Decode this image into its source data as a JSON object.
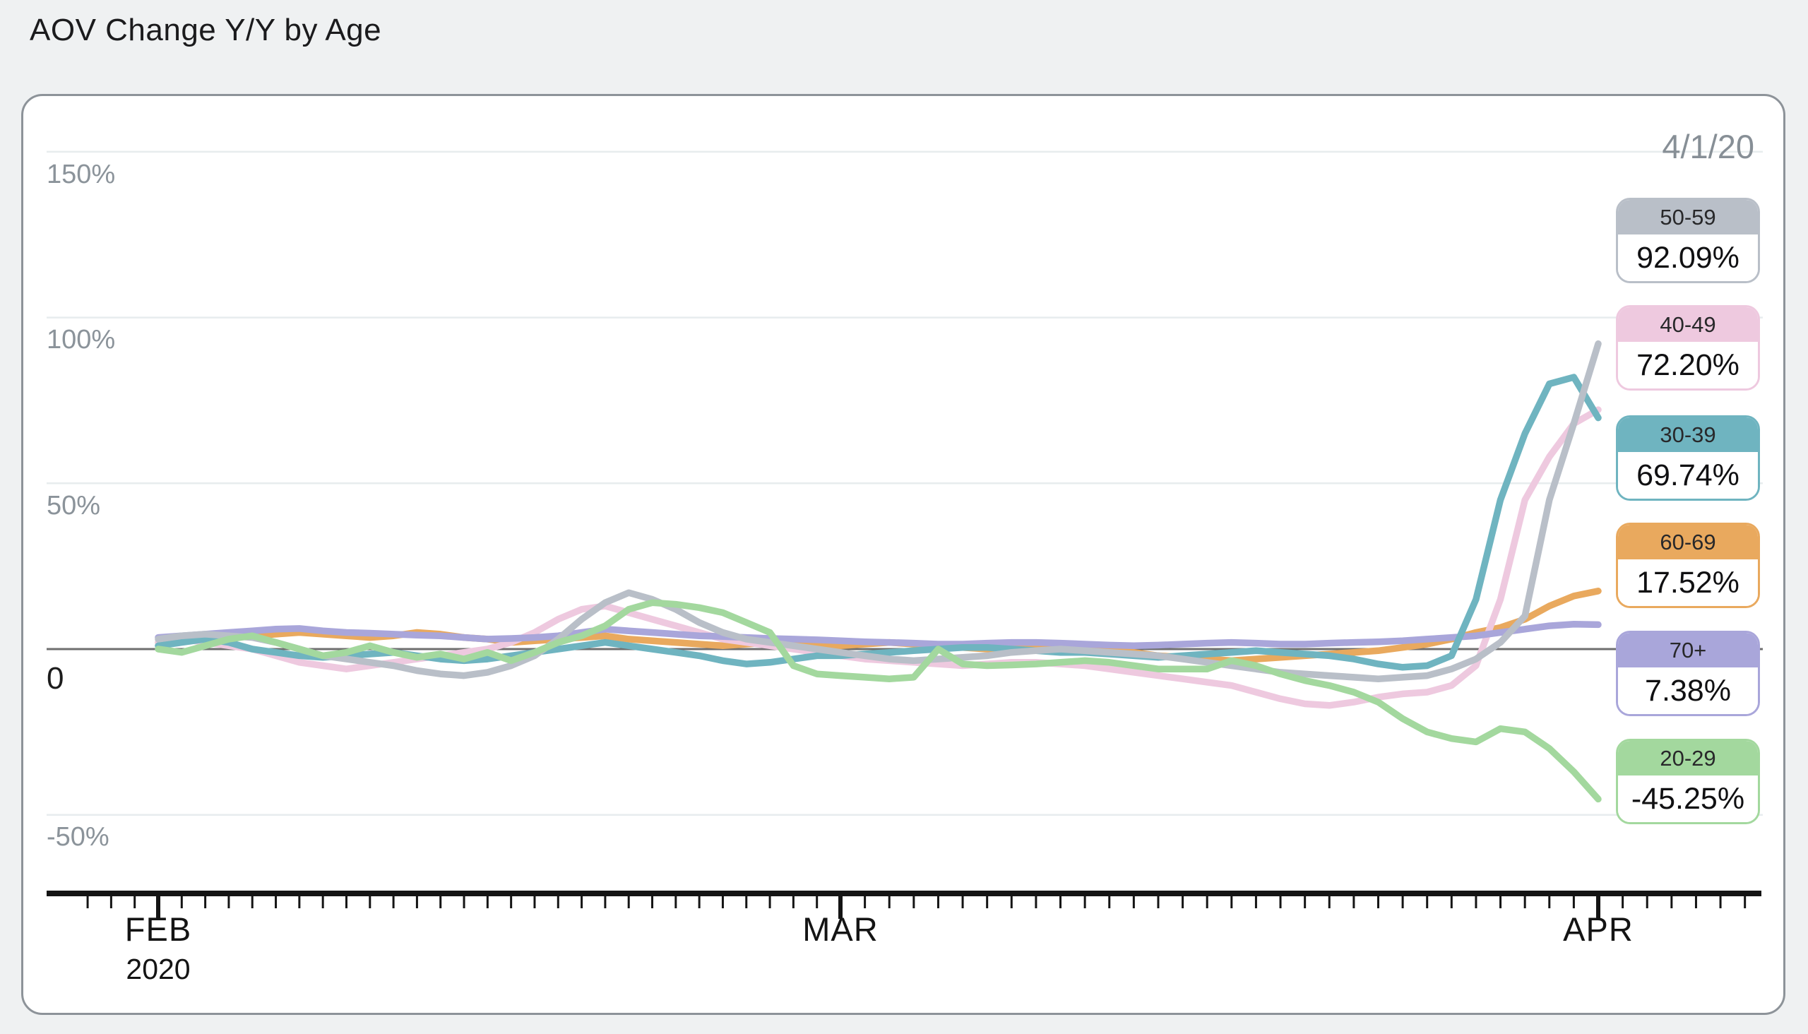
{
  "title": "AOV Change Y/Y by Age",
  "date_label": "4/1/20",
  "y_axis": {
    "labels": [
      "150%",
      "100%",
      "50%",
      "0",
      "-50%"
    ],
    "values": [
      150,
      100,
      50,
      0,
      -50
    ]
  },
  "x_axis": {
    "months": [
      {
        "label": "FEB",
        "sub": "2020"
      },
      {
        "label": "MAR",
        "sub": ""
      },
      {
        "label": "APR",
        "sub": ""
      }
    ]
  },
  "legend": [
    {
      "label": "50-59",
      "value": "92.09%",
      "series_index": 4
    },
    {
      "label": "40-49",
      "value": "72.20%",
      "series_index": 1
    },
    {
      "label": "30-39",
      "value": "69.74%",
      "series_index": 3
    },
    {
      "label": "60-69",
      "value": "17.52%",
      "series_index": 0
    },
    {
      "label": "70+",
      "value": "7.38%",
      "series_index": 2
    },
    {
      "label": "20-29",
      "value": "-45.25%",
      "series_index": 5
    }
  ],
  "chart_data": {
    "type": "line",
    "title": "AOV Change Y/Y by Age",
    "x_unit": "day",
    "x_start": "2020-02-01",
    "x_end": "2020-04-01",
    "x_anchor_days": {
      "FEB1": 0,
      "MAR1": 29,
      "APR1": 60
    },
    "ylim": [
      -50,
      150
    ],
    "grid": "horizontal",
    "legend_position": "right",
    "zero_line": true,
    "series": [
      {
        "name": "60-69",
        "color": "#e9a95e",
        "final": 17.52,
        "values": [
          2,
          3,
          4,
          4.5,
          4,
          4.5,
          5,
          4.5,
          4,
          3.5,
          4,
          5,
          4.5,
          3.5,
          3,
          2,
          2.5,
          3,
          3.5,
          4,
          3,
          2.5,
          2,
          1.5,
          1,
          1.5,
          2,
          2,
          1.5,
          1,
          1.5,
          2,
          1.5,
          1,
          0.5,
          0,
          0.5,
          1,
          1.5,
          1,
          0,
          -1,
          -2,
          -2.5,
          -3,
          -3.5,
          -3,
          -2.5,
          -2,
          -1.5,
          -1,
          -0.5,
          0.5,
          1.5,
          3,
          5,
          6.5,
          9,
          13,
          16,
          17.52
        ]
      },
      {
        "name": "40-49",
        "color": "#eec9df",
        "final": 72.2,
        "values": [
          2,
          3,
          2,
          1,
          0,
          -2,
          -4,
          -5,
          -6,
          -5,
          -4,
          -3,
          -2,
          -1,
          0,
          2,
          5,
          9,
          12,
          13,
          11,
          9,
          7,
          5,
          3,
          2,
          1,
          0,
          -1,
          -2,
          -3,
          -3.5,
          -4,
          -4.5,
          -5,
          -4.5,
          -4,
          -4,
          -4.5,
          -5,
          -6,
          -7,
          -8,
          -9,
          -10,
          -11,
          -13,
          -15,
          -16.5,
          -17,
          -16,
          -14.5,
          -13.5,
          -13,
          -11,
          -5,
          15,
          45,
          58,
          68,
          72.2
        ]
      },
      {
        "name": "70+",
        "color": "#a9a6da",
        "final": 7.38,
        "values": [
          3.5,
          4,
          4.5,
          5,
          5.5,
          6,
          6.2,
          5.5,
          5,
          4.8,
          4.5,
          4.2,
          4,
          3.5,
          3,
          3.2,
          3.5,
          4,
          5,
          6,
          5.5,
          5,
          4.5,
          4,
          3.8,
          3.5,
          3.2,
          3,
          2.8,
          2.5,
          2.2,
          2,
          1.8,
          1.5,
          1.5,
          1.8,
          2,
          2,
          1.8,
          1.5,
          1.2,
          1,
          1.2,
          1.5,
          1.8,
          2,
          1.8,
          1.5,
          1.5,
          1.8,
          2,
          2.2,
          2.5,
          3,
          3.5,
          4,
          5,
          6,
          7,
          7.5,
          7.38
        ]
      },
      {
        "name": "30-39",
        "color": "#6fb4c0",
        "final": 69.74,
        "values": [
          1,
          2,
          3,
          2,
          0,
          -1,
          -2,
          -2.5,
          -2,
          -1.5,
          -1,
          -2,
          -3,
          -3.5,
          -3,
          -2,
          -1,
          0,
          1,
          2,
          1,
          0,
          -1,
          -2,
          -3.5,
          -4.5,
          -4,
          -3,
          -2,
          -2,
          -1.5,
          -1,
          -0.5,
          0,
          0.5,
          0.5,
          0,
          -0.5,
          -1,
          -1,
          -1.5,
          -2,
          -2.5,
          -2,
          -1.5,
          -1,
          -0.5,
          -1,
          -1.5,
          -2,
          -3,
          -4.5,
          -5.5,
          -5,
          -2,
          15,
          45,
          65,
          80,
          82,
          69.74
        ]
      },
      {
        "name": "50-59",
        "color": "#b9bfc8",
        "final": 92.09,
        "values": [
          3,
          4,
          4.5,
          4,
          3.5,
          2,
          0,
          -2,
          -3,
          -4,
          -5,
          -6.5,
          -7.5,
          -8,
          -7,
          -5,
          -2,
          3,
          9,
          14,
          17,
          15,
          12,
          8,
          5,
          3,
          2,
          1,
          0,
          -1,
          -2,
          -3,
          -3.5,
          -3,
          -2.5,
          -2,
          -1,
          -0.5,
          0,
          -0.5,
          -1,
          -1.5,
          -2,
          -3,
          -4,
          -5,
          -6,
          -7,
          -7.5,
          -8,
          -8.5,
          -9,
          -8.5,
          -8,
          -6,
          -3,
          2,
          10,
          45,
          68,
          92.09
        ]
      },
      {
        "name": "20-29",
        "color": "#a3d89e",
        "final": -45.25,
        "values": [
          0,
          -1,
          1,
          3,
          4,
          2,
          0,
          -2,
          -1,
          1,
          -1,
          -2.5,
          -1.5,
          -3,
          -1,
          -3.5,
          -1,
          2,
          4,
          7,
          12,
          14,
          13.5,
          12.5,
          11,
          8,
          5,
          -5,
          -7.5,
          -8,
          -8.5,
          -9,
          -8.5,
          0,
          -4.5,
          -5,
          -4.8,
          -4.5,
          -4,
          -3.5,
          -4,
          -5,
          -6,
          -6,
          -6,
          -3.5,
          -5,
          -7.5,
          -9.5,
          -11,
          -13,
          -16,
          -21,
          -25,
          -27,
          -28,
          -24,
          -25,
          -30,
          -37,
          -45.25
        ]
      }
    ],
    "colors": {
      "grid": "#e7ecee",
      "zero_line": "#6f6f6f",
      "axis": "#141414",
      "axis_text": "#8b939a",
      "dark_text": "#1b1b1d"
    }
  }
}
